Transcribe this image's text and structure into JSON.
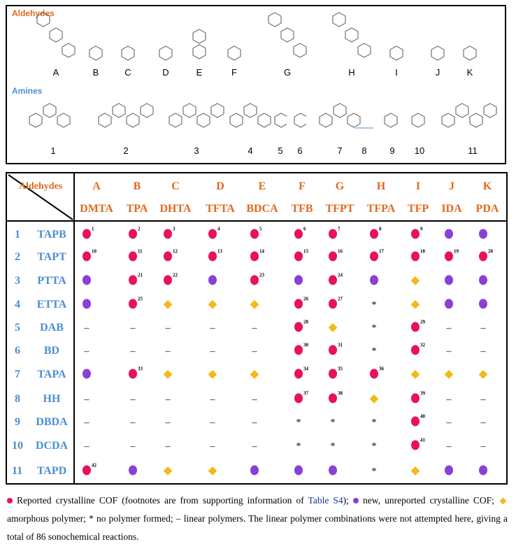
{
  "aldehydes_title": "Aldehydes",
  "amines_title": "Amines",
  "aldehyde_labels": [
    "A",
    "B",
    "C",
    "D",
    "E",
    "F",
    "G",
    "H",
    "I",
    "J",
    "K"
  ],
  "amine_labels": [
    "1",
    "2",
    "3",
    "4",
    "5",
    "6",
    "7",
    "8",
    "9",
    "10",
    "11"
  ],
  "table": {
    "corner_label": "Aldehydes",
    "columns": [
      {
        "letter": "A",
        "name": "DMTA"
      },
      {
        "letter": "B",
        "name": "TPA"
      },
      {
        "letter": "C",
        "name": "DHTA"
      },
      {
        "letter": "D",
        "name": "TFTA"
      },
      {
        "letter": "E",
        "name": "BDCA"
      },
      {
        "letter": "F",
        "name": "TFB"
      },
      {
        "letter": "G",
        "name": "TFPT"
      },
      {
        "letter": "H",
        "name": "TFPA"
      },
      {
        "letter": "I",
        "name": "TFP"
      },
      {
        "letter": "J",
        "name": "IDA"
      },
      {
        "letter": "K",
        "name": "PDA"
      }
    ],
    "rows": [
      {
        "num": "1",
        "name": "TAPB",
        "cells": [
          "r:1",
          "r:2",
          "r:3",
          "r:4",
          "r:5",
          "r:6",
          "r:7",
          "r:8",
          "r:9",
          "p",
          "p"
        ]
      },
      {
        "num": "2",
        "name": "TAPT",
        "cells": [
          "r:10",
          "r:11",
          "r:12",
          "r:13",
          "r:14",
          "r:15",
          "r:16",
          "r:17",
          "r:18",
          "r:19",
          "r:20"
        ]
      },
      {
        "num": "3",
        "name": "PTTA",
        "cells": [
          "p",
          "r:21",
          "r:22",
          "p",
          "r:23",
          "p",
          "r:24",
          "p",
          "d",
          "p",
          "p"
        ]
      },
      {
        "num": "4",
        "name": "ETTA",
        "cells": [
          "p",
          "r:25",
          "d",
          "d",
          "d",
          "r:26",
          "r:27",
          "*",
          "d",
          "p",
          "p"
        ]
      },
      {
        "num": "5",
        "name": "DAB",
        "cells": [
          "–",
          "–",
          "–",
          "–",
          "–",
          "r:28",
          "d",
          "*",
          "r:29",
          "–",
          "–"
        ]
      },
      {
        "num": "6",
        "name": "BD",
        "cells": [
          "–",
          "–",
          "–",
          "–",
          "–",
          "r:30",
          "r:31",
          "*",
          "r:32",
          "–",
          "–"
        ]
      },
      {
        "num": "7",
        "name": "TAPA",
        "cells": [
          "p",
          "r:33",
          "d",
          "d",
          "d",
          "r:34",
          "r:35",
          "r:36",
          "d",
          "d",
          "d"
        ]
      },
      {
        "num": "8",
        "name": "HH",
        "cells": [
          "–",
          "–",
          "–",
          "–",
          "–",
          "r:37",
          "r:38",
          "d",
          "r:39",
          "–",
          "–"
        ]
      },
      {
        "num": "9",
        "name": "DBDA",
        "cells": [
          "–",
          "–",
          "–",
          "–",
          "–",
          "*",
          "*",
          "*",
          "r:40",
          "–",
          "–"
        ]
      },
      {
        "num": "10",
        "name": "DCDA",
        "cells": [
          "–",
          "–",
          "–",
          "–",
          "–",
          "*",
          "*",
          "*",
          "r:41",
          "–",
          "–"
        ]
      },
      {
        "num": "11",
        "name": "TAPD",
        "cells": [
          "r:42",
          "p",
          "d",
          "d",
          "p",
          "p",
          "p",
          "*",
          "d",
          "p",
          "p"
        ]
      }
    ]
  },
  "caption": {
    "t1": " Reported crystalline COF (footnotes are from supporting information of ",
    "link": "Table S4",
    "t2": "); ",
    "t3": " new, unreported crystalline COF; ",
    "t4": " amorphous polymer; * no polymer formed; – linear polymers. The linear polymer combinations were not attempted here, giving a total of 86 sonochemical reactions."
  },
  "colors": {
    "reported": "#e8115f",
    "new": "#8a3fd6",
    "amorphous": "#f5b818",
    "header": "#e2691d",
    "amine": "#4a8fd4"
  }
}
